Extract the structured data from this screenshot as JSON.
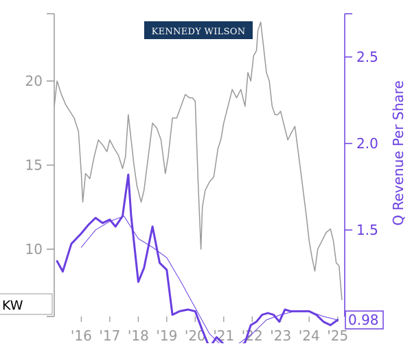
{
  "chart_data": {
    "type": "line",
    "ticker": "KW",
    "logo_text": "KENNEDY WILSON",
    "y2label": "Q Revenue Per Share",
    "last_value_label": "0.98",
    "x_tick_labels": [
      "'16",
      "'17",
      "'18",
      "'19",
      "'20",
      "'21",
      "'22",
      "'23",
      "'24",
      "'25"
    ],
    "x_tick_years": [
      2016,
      2017,
      2018,
      2019,
      2020,
      2021,
      2022,
      2023,
      2024,
      2025
    ],
    "xlim": [
      2015.05,
      2025.2
    ],
    "y_left": {
      "ylim": [
        6,
        24
      ],
      "ticks": [
        10,
        15,
        20
      ],
      "tick_labels": [
        "10",
        "15",
        "20"
      ]
    },
    "y_right": {
      "ylim": [
        1.0,
        2.75
      ],
      "ticks": [
        1.5,
        2.0,
        2.5
      ],
      "tick_labels": [
        "1.5",
        "2.0",
        "2.5"
      ]
    },
    "colors": {
      "price": "#999999",
      "revenue": "#6a3fe0",
      "axis_left": "#999999",
      "axis_right": "#6a3fe0",
      "logo_bg": "#17385f",
      "logo_text": "#ffffff"
    },
    "series": [
      {
        "key": "price",
        "axis": "left",
        "x": [
          2015.05,
          2015.15,
          2015.3,
          2015.45,
          2015.6,
          2015.75,
          2015.9,
          2016.0,
          2016.05,
          2016.15,
          2016.3,
          2016.45,
          2016.6,
          2016.75,
          2016.9,
          2017.0,
          2017.15,
          2017.3,
          2017.45,
          2017.55,
          2017.65,
          2017.75,
          2017.85,
          2017.95,
          2018.1,
          2018.2,
          2018.35,
          2018.5,
          2018.65,
          2018.8,
          2018.95,
          2019.05,
          2019.2,
          2019.35,
          2019.5,
          2019.65,
          2019.8,
          2019.9,
          2020.0,
          2020.1,
          2020.2,
          2020.25,
          2020.35,
          2020.5,
          2020.65,
          2020.8,
          2020.9,
          2021.0,
          2021.15,
          2021.3,
          2021.45,
          2021.6,
          2021.75,
          2021.85,
          2021.95,
          2022.05,
          2022.15,
          2022.2,
          2022.3,
          2022.4,
          2022.5,
          2022.6,
          2022.7,
          2022.8,
          2022.9,
          2023.0,
          2023.1,
          2023.25,
          2023.4,
          2023.5,
          2023.6,
          2023.75,
          2023.9,
          2024.0,
          2024.1,
          2024.2,
          2024.3,
          2024.45,
          2024.6,
          2024.75,
          2024.85,
          2024.95,
          2025.05,
          2025.15
        ],
        "y": [
          18.5,
          20.0,
          19.2,
          18.6,
          18.2,
          17.8,
          17.0,
          14.5,
          12.8,
          14.5,
          14.2,
          15.5,
          16.5,
          16.2,
          15.8,
          16.5,
          16.0,
          15.6,
          14.8,
          15.5,
          18.0,
          16.5,
          15.0,
          13.8,
          12.8,
          13.5,
          15.5,
          17.5,
          17.2,
          16.5,
          14.5,
          15.5,
          17.8,
          17.8,
          18.5,
          19.2,
          19.0,
          19.0,
          18.8,
          14.0,
          10.0,
          12.5,
          13.5,
          14.0,
          14.3,
          16.0,
          16.5,
          17.5,
          18.5,
          19.5,
          19.0,
          19.5,
          18.5,
          20.5,
          20.0,
          21.5,
          21.8,
          23.0,
          23.5,
          22.0,
          20.5,
          20.0,
          18.5,
          18.0,
          18.0,
          18.2,
          17.5,
          16.5,
          17.0,
          17.3,
          16.0,
          14.0,
          12.0,
          10.5,
          9.5,
          8.7,
          10.0,
          10.5,
          11.0,
          11.2,
          10.5,
          9.2,
          9.0,
          7.0
        ]
      },
      {
        "key": "revenue",
        "axis": "right",
        "x": [
          2015.15,
          2015.35,
          2015.65,
          2016.0,
          2016.25,
          2016.5,
          2016.75,
          2017.0,
          2017.2,
          2017.45,
          2017.65,
          2017.75,
          2018.0,
          2018.2,
          2018.5,
          2018.75,
          2019.0,
          2019.2,
          2019.45,
          2019.75,
          2020.0,
          2020.25,
          2020.5,
          2020.75,
          2021.0,
          2021.25,
          2021.5,
          2021.75,
          2021.95,
          2022.15,
          2022.35,
          2022.55,
          2022.75,
          2022.95,
          2023.15,
          2023.35,
          2023.55,
          2023.75,
          2024.0,
          2024.25,
          2024.5,
          2024.75,
          2025.0
        ],
        "y": [
          1.32,
          1.26,
          1.42,
          1.48,
          1.53,
          1.57,
          1.54,
          1.56,
          1.52,
          1.58,
          1.82,
          1.58,
          1.2,
          1.28,
          1.52,
          1.31,
          1.27,
          1.01,
          1.03,
          1.04,
          1.03,
          0.92,
          0.82,
          0.88,
          0.84,
          0.79,
          0.82,
          0.85,
          0.95,
          0.97,
          1.01,
          1.02,
          1.01,
          0.97,
          1.04,
          1.03,
          1.03,
          1.03,
          1.03,
          1.01,
          0.97,
          0.95,
          0.98
        ]
      },
      {
        "key": "revenue_avg",
        "axis": "right",
        "x": [
          2016.0,
          2016.5,
          2017.0,
          2017.5,
          2018.0,
          2018.5,
          2019.0,
          2019.5,
          2020.0,
          2020.5,
          2021.0,
          2021.5,
          2022.0,
          2022.5,
          2023.0,
          2023.5,
          2024.0,
          2024.5,
          2025.0
        ],
        "y": [
          1.4,
          1.5,
          1.55,
          1.58,
          1.45,
          1.4,
          1.34,
          1.2,
          1.05,
          0.9,
          0.82,
          0.84,
          0.9,
          0.98,
          1.01,
          1.03,
          1.03,
          1.0,
          0.98
        ]
      }
    ]
  }
}
